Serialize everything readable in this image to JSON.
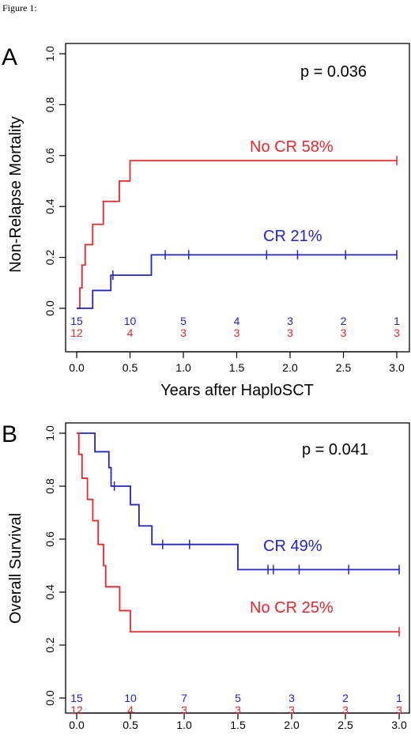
{
  "figure_caption": "Figure 1:",
  "colors": {
    "red": "#e8272b",
    "blue": "#2323c8",
    "axis": "#000000"
  },
  "chart_data": [
    {
      "panel_label": "A",
      "type": "line",
      "subtype": "kaplan-meier-step",
      "ylabel": "Non-Relapse Mortality",
      "xlabel": "Years after HaploSCT",
      "xlim": [
        0,
        3.0
      ],
      "ylim": [
        0,
        1.0
      ],
      "xticks": [
        "0.0",
        "0.5",
        "1.0",
        "1.5",
        "2.0",
        "2.5",
        "3.0"
      ],
      "yticks": [
        "0.0",
        "0.2",
        "0.4",
        "0.6",
        "0.8",
        "1.0"
      ],
      "annotation": "p = 0.036",
      "series": [
        {
          "name": "No CR 58%",
          "color": "#e8272b",
          "steps": [
            [
              0,
              0
            ],
            [
              0.03,
              0.08
            ],
            [
              0.05,
              0.17
            ],
            [
              0.08,
              0.25
            ],
            [
              0.15,
              0.33
            ],
            [
              0.25,
              0.42
            ],
            [
              0.4,
              0.5
            ],
            [
              0.5,
              0.58
            ],
            [
              3.0,
              0.58
            ]
          ],
          "censor_x": [
            3.0
          ]
        },
        {
          "name": "CR 21%",
          "color": "#2323c8",
          "steps": [
            [
              0,
              0
            ],
            [
              0.15,
              0.07
            ],
            [
              0.32,
              0.13
            ],
            [
              0.7,
              0.21
            ],
            [
              3.0,
              0.21
            ]
          ],
          "censor_x": [
            0.34,
            0.83,
            1.05,
            1.78,
            2.07,
            2.52,
            3.0
          ]
        }
      ],
      "at_risk": [
        {
          "color": "#2323c8",
          "values": [
            "15",
            "10",
            "5",
            "4",
            "3",
            "2",
            "1"
          ]
        },
        {
          "color": "#e8272b",
          "values": [
            "12",
            "4",
            "3",
            "3",
            "3",
            "3",
            "3"
          ]
        }
      ]
    },
    {
      "panel_label": "B",
      "type": "line",
      "subtype": "kaplan-meier-step",
      "ylabel": "Overall Survival",
      "xlabel": "",
      "xlim": [
        0,
        3.0
      ],
      "ylim": [
        0,
        1.0
      ],
      "xticks": [
        "0.0",
        "0.5",
        "1.0",
        "1.5",
        "2.0",
        "2.5",
        "3.0"
      ],
      "yticks": [
        "0.0",
        "0.2",
        "0.4",
        "0.6",
        "0.8",
        "1.0"
      ],
      "annotation": "p = 0.041",
      "series": [
        {
          "name": "CR 49%",
          "color": "#2323c8",
          "steps": [
            [
              0,
              1.0
            ],
            [
              0.17,
              0.93
            ],
            [
              0.3,
              0.87
            ],
            [
              0.32,
              0.8
            ],
            [
              0.5,
              0.73
            ],
            [
              0.58,
              0.65
            ],
            [
              0.7,
              0.58
            ],
            [
              1.5,
              0.485
            ],
            [
              3.0,
              0.485
            ]
          ],
          "censor_x": [
            0.35,
            0.8,
            1.05,
            1.78,
            1.83,
            2.07,
            2.53,
            3.0
          ]
        },
        {
          "name": "No CR 25%",
          "color": "#e8272b",
          "steps": [
            [
              0,
              1.0
            ],
            [
              0.02,
              0.92
            ],
            [
              0.05,
              0.83
            ],
            [
              0.1,
              0.75
            ],
            [
              0.15,
              0.67
            ],
            [
              0.2,
              0.58
            ],
            [
              0.25,
              0.5
            ],
            [
              0.27,
              0.42
            ],
            [
              0.4,
              0.33
            ],
            [
              0.5,
              0.25
            ],
            [
              3.0,
              0.25
            ]
          ],
          "censor_x": [
            3.0
          ]
        }
      ],
      "at_risk": [
        {
          "color": "#2323c8",
          "values": [
            "15",
            "10",
            "7",
            "5",
            "3",
            "2",
            "1"
          ]
        },
        {
          "color": "#e8272b",
          "values": [
            "12",
            "4",
            "3",
            "3",
            "3",
            "3",
            "3"
          ]
        }
      ]
    }
  ]
}
